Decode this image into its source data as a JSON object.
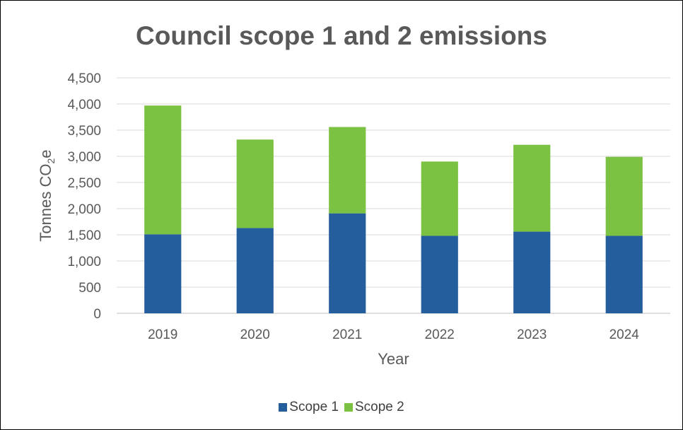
{
  "chart_data": {
    "type": "bar",
    "stacked": true,
    "title": "Council scope 1 and 2 emissions",
    "xlabel": "Year",
    "ylabel_main": "Tonnes CO",
    "ylabel_sub": "2",
    "ylabel_end": "e",
    "categories": [
      "2019",
      "2020",
      "2021",
      "2022",
      "2023",
      "2024"
    ],
    "series": [
      {
        "name": "Scope 1",
        "color": "#255E9C",
        "values": [
          1510,
          1630,
          1910,
          1480,
          1560,
          1480
        ]
      },
      {
        "name": "Scope 2",
        "color": "#7CC242",
        "values": [
          2460,
          1690,
          1650,
          1420,
          1660,
          1510
        ]
      }
    ],
    "ylim": [
      0,
      4500
    ],
    "yticks": [
      0,
      500,
      1000,
      1500,
      2000,
      2500,
      3000,
      3500,
      4000,
      4500
    ],
    "ytick_labels": [
      "0",
      "500",
      "1,000",
      "1,500",
      "2,000",
      "2,500",
      "3,000",
      "3,500",
      "4,000",
      "4,500"
    ],
    "grid": true,
    "legend_position": "bottom"
  }
}
